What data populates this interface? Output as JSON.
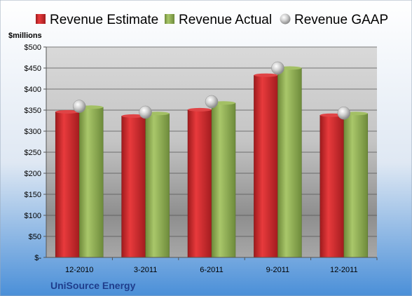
{
  "chart_data": {
    "type": "bar",
    "title": "",
    "ylabel": "$millions",
    "xlabel": "",
    "categories": [
      "12-2010",
      "3-2011",
      "6-2011",
      "9-2011",
      "12-2011"
    ],
    "series": [
      {
        "name": "Revenue Estimate",
        "values": [
          346,
          336,
          351,
          433,
          338
        ],
        "color": "#d0282b"
      },
      {
        "name": "Revenue Actual",
        "values": [
          357,
          342,
          367,
          450,
          342
        ],
        "color": "#8fae52"
      },
      {
        "name": "Revenue GAAP",
        "values": [
          359,
          345,
          370,
          450,
          343
        ],
        "color": "#c0c0c0",
        "marker": "sphere"
      }
    ],
    "ylim": [
      0,
      500
    ],
    "ytick_labels": [
      "$-",
      "$50",
      "$100",
      "$150",
      "$200",
      "$250",
      "$300",
      "$350",
      "$400",
      "$450",
      "$500"
    ],
    "grid": true,
    "legend_position": "top"
  },
  "footer": {
    "company": "UniSource Energy"
  },
  "colors": {
    "background_top": "#ffffff",
    "background_bottom": "#4a8fd8",
    "plot_top": "#d6d6d6",
    "plot_bottom": "#8c8c8c",
    "footer_text": "#1f3d8c"
  }
}
